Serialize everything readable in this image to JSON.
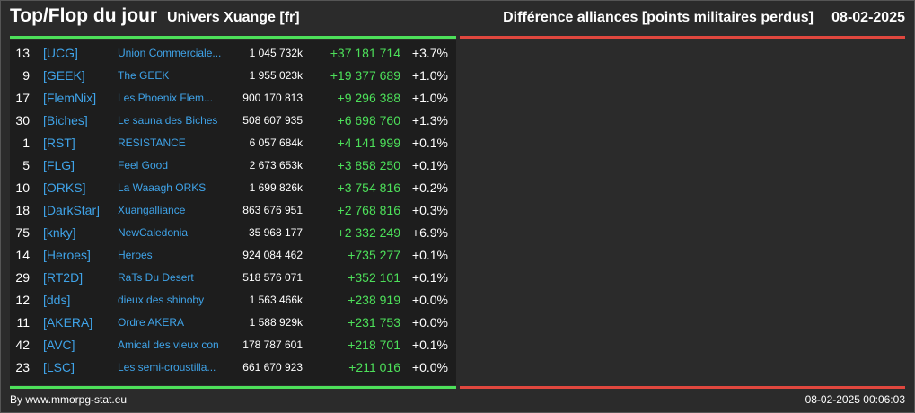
{
  "header": {
    "title": "Top/Flop du jour",
    "universe": "Univers Xuange [fr]",
    "subtitle": "Différence alliances [points militaires perdus]",
    "date": "08-02-2025"
  },
  "rows": [
    {
      "rank": "13",
      "tag": "[UCG]",
      "name": "Union Commerciale...",
      "points": "1 045 732k",
      "diff": "+37 181 714",
      "pct": "+3.7%"
    },
    {
      "rank": "9",
      "tag": "[GEEK]",
      "name": "The GEEK",
      "points": "1 955 023k",
      "diff": "+19 377 689",
      "pct": "+1.0%"
    },
    {
      "rank": "17",
      "tag": "[FlemNix]",
      "name": "Les Phoenix Flem...",
      "points": "900 170 813",
      "diff": "+9 296 388",
      "pct": "+1.0%"
    },
    {
      "rank": "30",
      "tag": "[Biches]",
      "name": "Le sauna des Biches",
      "points": "508 607 935",
      "diff": "+6 698 760",
      "pct": "+1.3%"
    },
    {
      "rank": "1",
      "tag": "[RST]",
      "name": "RESISTANCE",
      "points": "6 057 684k",
      "diff": "+4 141 999",
      "pct": "+0.1%"
    },
    {
      "rank": "5",
      "tag": "[FLG]",
      "name": "Feel Good",
      "points": "2 673 653k",
      "diff": "+3 858 250",
      "pct": "+0.1%"
    },
    {
      "rank": "10",
      "tag": "[ORKS]",
      "name": "La Waaagh ORKS",
      "points": "1 699 826k",
      "diff": "+3 754 816",
      "pct": "+0.2%"
    },
    {
      "rank": "18",
      "tag": "[DarkStar]",
      "name": "Xuangalliance",
      "points": "863 676 951",
      "diff": "+2 768 816",
      "pct": "+0.3%"
    },
    {
      "rank": "75",
      "tag": "[knky]",
      "name": "NewCaledonia",
      "points": "35 968 177",
      "diff": "+2 332 249",
      "pct": "+6.9%"
    },
    {
      "rank": "14",
      "tag": "[Heroes]",
      "name": "Heroes",
      "points": "924 084 462",
      "diff": "+735 277",
      "pct": "+0.1%"
    },
    {
      "rank": "29",
      "tag": "[RT2D]",
      "name": "RaTs Du Desert",
      "points": "518 576 071",
      "diff": "+352 101",
      "pct": "+0.1%"
    },
    {
      "rank": "12",
      "tag": "[dds]",
      "name": "dieux des shinoby",
      "points": "1 563 466k",
      "diff": "+238 919",
      "pct": "+0.0%"
    },
    {
      "rank": "11",
      "tag": "[AKERA]",
      "name": "Ordre AKERA",
      "points": "1 588 929k",
      "diff": "+231 753",
      "pct": "+0.0%"
    },
    {
      "rank": "42",
      "tag": "[AVC]",
      "name": "Amical des vieux con",
      "points": "178 787 601",
      "diff": "+218 701",
      "pct": "+0.1%"
    },
    {
      "rank": "23",
      "tag": "[LSC]",
      "name": "Les semi-croustilla...",
      "points": "661 670 923",
      "diff": "+211 016",
      "pct": "+0.0%"
    }
  ],
  "footer": {
    "source": "By www.mmorpg-stat.eu",
    "timestamp": "08-02-2025 00:06:03"
  },
  "colors": {
    "background": "#2b2b2b",
    "panel": "#1d1d1d",
    "link": "#3fa3e8",
    "gain": "#4de05a",
    "loss": "#e0473e"
  }
}
